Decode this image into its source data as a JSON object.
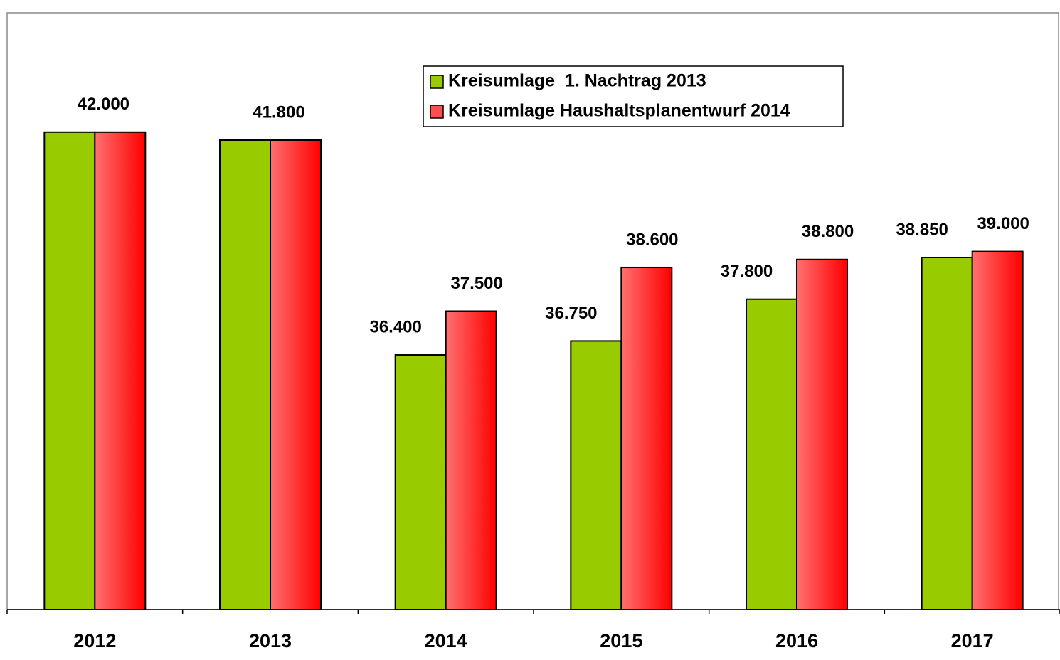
{
  "chart_data": {
    "type": "bar",
    "categories": [
      "2012",
      "2013",
      "2014",
      "2015",
      "2016",
      "2017"
    ],
    "series": [
      {
        "name": "Kreisumlage  1. Nachtrag 2013",
        "color": "#99cc00",
        "values": [
          42000,
          41800,
          36400,
          36750,
          37800,
          38850
        ],
        "value_labels": [
          null,
          null,
          "36.400",
          "36.750",
          "37.800",
          "38.850"
        ]
      },
      {
        "name": "Kreisumlage Haushaltsplanentwurf 2014",
        "color": "#ff0000",
        "values": [
          42000,
          41800,
          37500,
          38600,
          38800,
          39000
        ],
        "value_labels": [
          "42.000",
          "41.800",
          "37.500",
          "38.600",
          "38.800",
          "39.000"
        ]
      }
    ],
    "ylim": [
      30000,
      45000
    ]
  }
}
